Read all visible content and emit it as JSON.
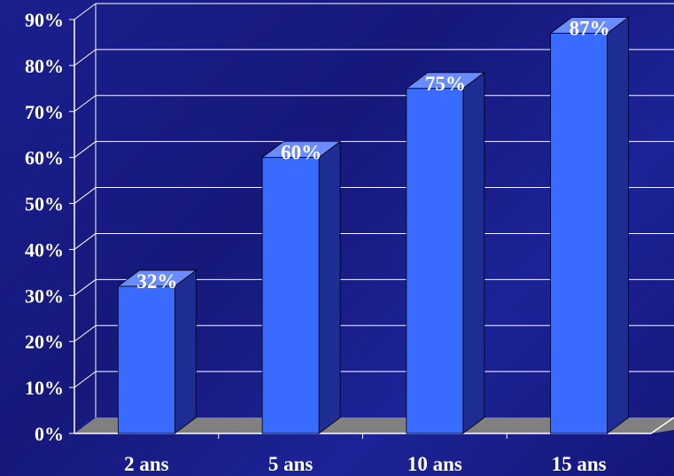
{
  "chart_data": {
    "type": "bar",
    "categories": [
      "2 ans",
      "5 ans",
      "10 ans",
      "15 ans"
    ],
    "values": [
      32,
      60,
      75,
      87
    ],
    "data_labels": [
      "32%",
      "60%",
      "75%",
      "87%"
    ],
    "ylim": [
      0,
      90
    ],
    "yticks": [
      0,
      10,
      20,
      30,
      40,
      50,
      60,
      70,
      80,
      90
    ],
    "ytick_labels": [
      "0%",
      "10%",
      "20%",
      "30%",
      "40%",
      "50%",
      "60%",
      "70%",
      "80%",
      "90%"
    ],
    "grid": true,
    "style": "3d",
    "colors": {
      "bar_front": "#3a6bff",
      "bar_top": "#6b8cff",
      "bar_side": "#1e2d94",
      "floor": "#808080",
      "grid": "#ffffff",
      "text": "#ffffff"
    }
  }
}
